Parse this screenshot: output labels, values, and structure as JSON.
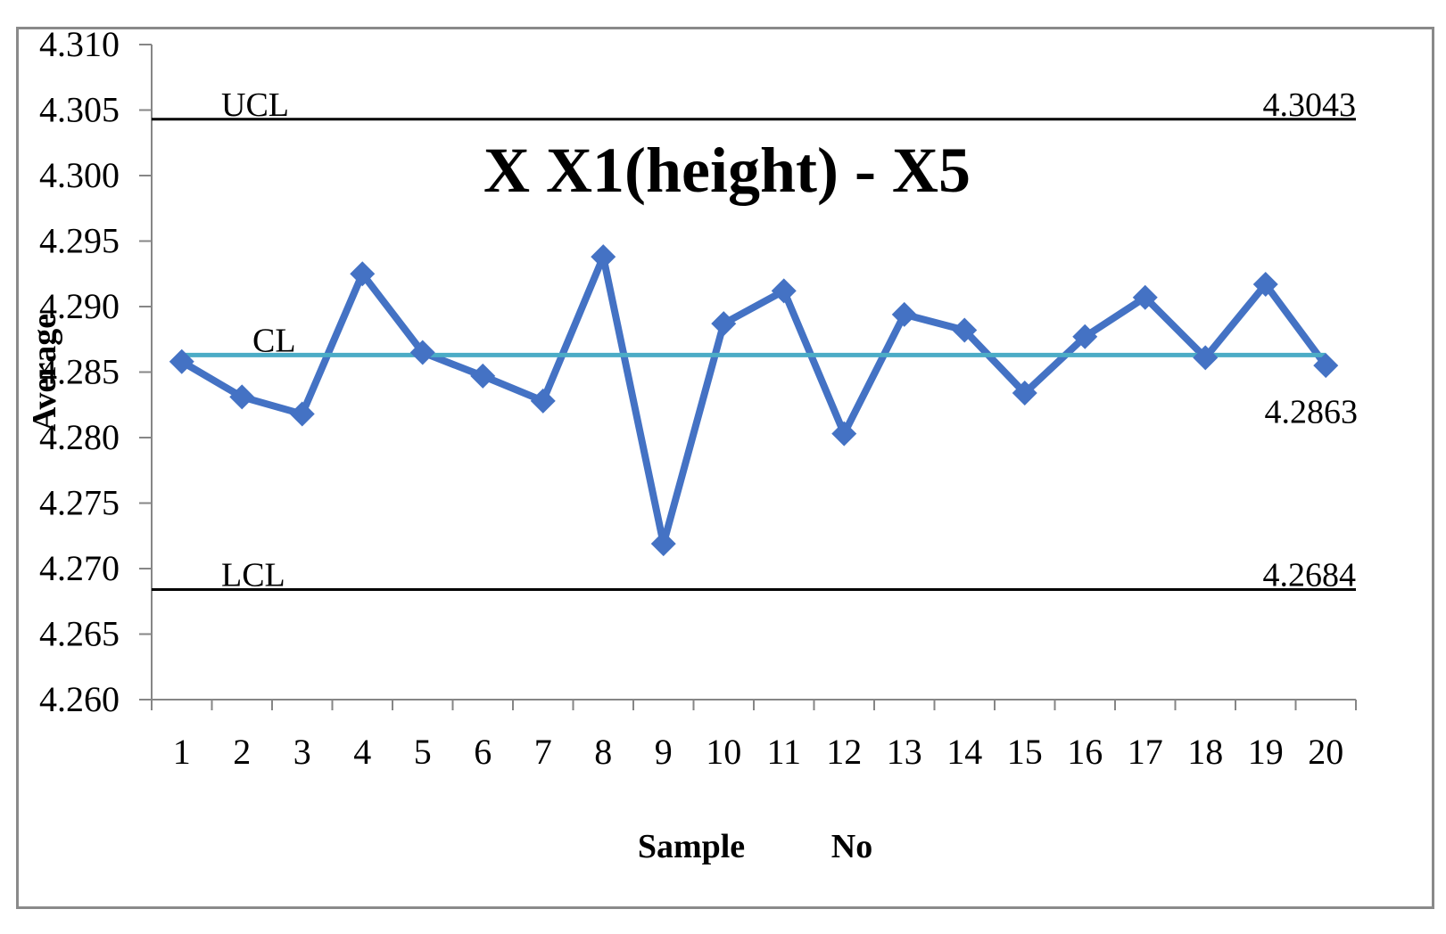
{
  "chart_data": {
    "type": "line",
    "title": "X X1(height) - X5",
    "xlabel_part1": "Sample",
    "xlabel_part2": "No",
    "ylabel": "Average",
    "ylim": [
      4.26,
      4.31
    ],
    "ytick_step": 0.005,
    "yticks": [
      "4.260",
      "4.265",
      "4.270",
      "4.275",
      "4.280",
      "4.285",
      "4.290",
      "4.295",
      "4.300",
      "4.305",
      "4.310"
    ],
    "categories": [
      "1",
      "2",
      "3",
      "4",
      "5",
      "6",
      "7",
      "8",
      "9",
      "10",
      "11",
      "12",
      "13",
      "14",
      "15",
      "16",
      "17",
      "18",
      "19",
      "20"
    ],
    "series": [
      {
        "values": [
          4.2858,
          4.2831,
          4.2818,
          4.2925,
          4.2865,
          4.2847,
          4.2828,
          4.2938,
          4.2719,
          4.2887,
          4.2912,
          4.2803,
          4.2894,
          4.2882,
          4.2834,
          4.2877,
          4.2907,
          4.2861,
          4.2917,
          4.2855
        ]
      }
    ],
    "reference_lines": [
      {
        "name": "UCL",
        "value": 4.3043,
        "value_label": "4.3043",
        "color": "#000000"
      },
      {
        "name": "CL",
        "value": 4.2863,
        "value_label": "4.2863",
        "color": "#4BACC6"
      },
      {
        "name": "LCL",
        "value": 4.2684,
        "value_label": "4.2684",
        "color": "#000000"
      }
    ],
    "series_color": "#4472C4",
    "axis_color": "#868686",
    "grid": false,
    "legend": "none"
  }
}
